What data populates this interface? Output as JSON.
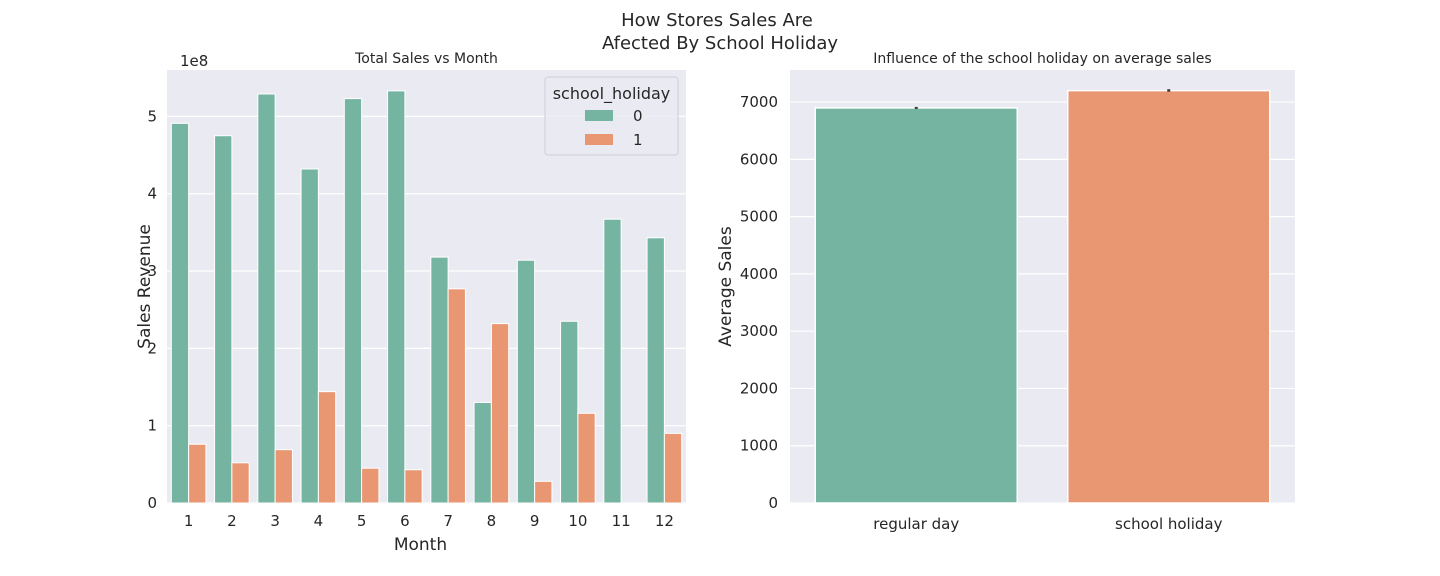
{
  "figure": {
    "title_line1": "How Stores Sales Are",
    "title_line2": "Afected By School Holiday"
  },
  "colors": {
    "background": "#eaeaf2",
    "grid": "#ffffff",
    "series0": "#74b4a0",
    "series1": "#e99672",
    "errorbar": "#3d3d3d"
  },
  "chart_data": [
    {
      "type": "bar",
      "title": "Total Sales vs Month",
      "xlabel": "Month",
      "ylabel": "Sales Revenue",
      "y_offset_label": "1e8",
      "categories": [
        "1",
        "2",
        "3",
        "4",
        "5",
        "6",
        "7",
        "8",
        "9",
        "10",
        "11",
        "12"
      ],
      "series": [
        {
          "name": "0",
          "values": [
            4.91,
            4.75,
            5.29,
            4.32,
            5.23,
            5.33,
            3.18,
            1.3,
            3.14,
            2.35,
            3.67,
            3.43
          ]
        },
        {
          "name": "1",
          "values": [
            0.76,
            0.52,
            0.69,
            1.44,
            0.45,
            0.43,
            2.77,
            2.32,
            0.28,
            1.16,
            0.0,
            0.9
          ]
        }
      ],
      "ylim": [
        0,
        5.6
      ],
      "yticks": [
        0,
        1,
        2,
        3,
        4,
        5
      ],
      "grid": true,
      "legend": {
        "title": "school_holiday",
        "placement": "top-right",
        "entries": [
          "0",
          "1"
        ]
      }
    },
    {
      "type": "bar",
      "title": "Influence of the school holiday on average sales",
      "xlabel": "",
      "ylabel": "Average Sales",
      "categories": [
        "regular day",
        "school holiday"
      ],
      "values": [
        6898,
        7200
      ],
      "error": [
        [
          6880,
          6915
        ],
        [
          7180,
          7225
        ]
      ],
      "ylim": [
        0,
        7560
      ],
      "yticks": [
        0,
        1000,
        2000,
        3000,
        4000,
        5000,
        6000,
        7000
      ],
      "grid": true
    }
  ]
}
